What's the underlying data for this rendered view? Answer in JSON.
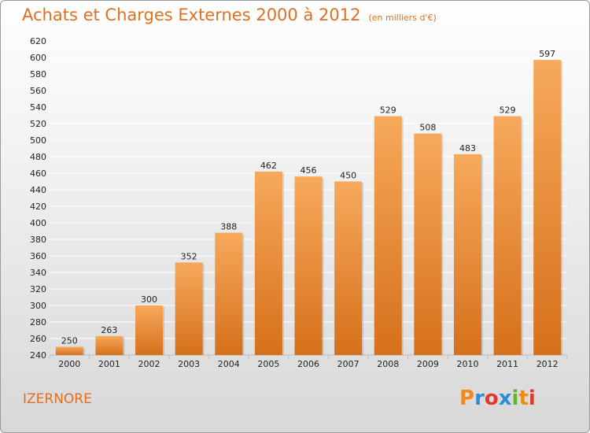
{
  "header": {
    "title": "Achats et Charges Externes 2000 à 2012",
    "unit": "(en milliers d'€)"
  },
  "footer": {
    "commune": "IZERNORE",
    "brand_letters": [
      "P",
      "r",
      "o",
      "x",
      "i",
      "t",
      "i"
    ],
    "brand_colors": [
      "#f08a1c",
      "#2a8fd8",
      "#e2382e",
      "#2a8fd8",
      "#5cb82e",
      "#f08a1c",
      "#e2382e"
    ]
  },
  "colors": {
    "bar_light": "#f7a95b",
    "bar_dark": "#d6701a",
    "accent": "#e07020"
  },
  "chart_data": {
    "type": "bar",
    "title": "Achats et Charges Externes 2000 à 2012",
    "subtitle": "(en milliers d'€)",
    "categories": [
      "2000",
      "2001",
      "2002",
      "2003",
      "2004",
      "2005",
      "2006",
      "2007",
      "2008",
      "2009",
      "2010",
      "2011",
      "2012"
    ],
    "values": [
      250,
      263,
      300,
      352,
      388,
      462,
      456,
      450,
      529,
      508,
      483,
      529,
      597
    ],
    "ylim": [
      240,
      620
    ],
    "yticks": [
      240,
      260,
      280,
      300,
      320,
      340,
      360,
      380,
      400,
      420,
      440,
      460,
      480,
      500,
      520,
      540,
      560,
      580,
      600,
      620
    ],
    "grid": true,
    "data_labels": true
  }
}
